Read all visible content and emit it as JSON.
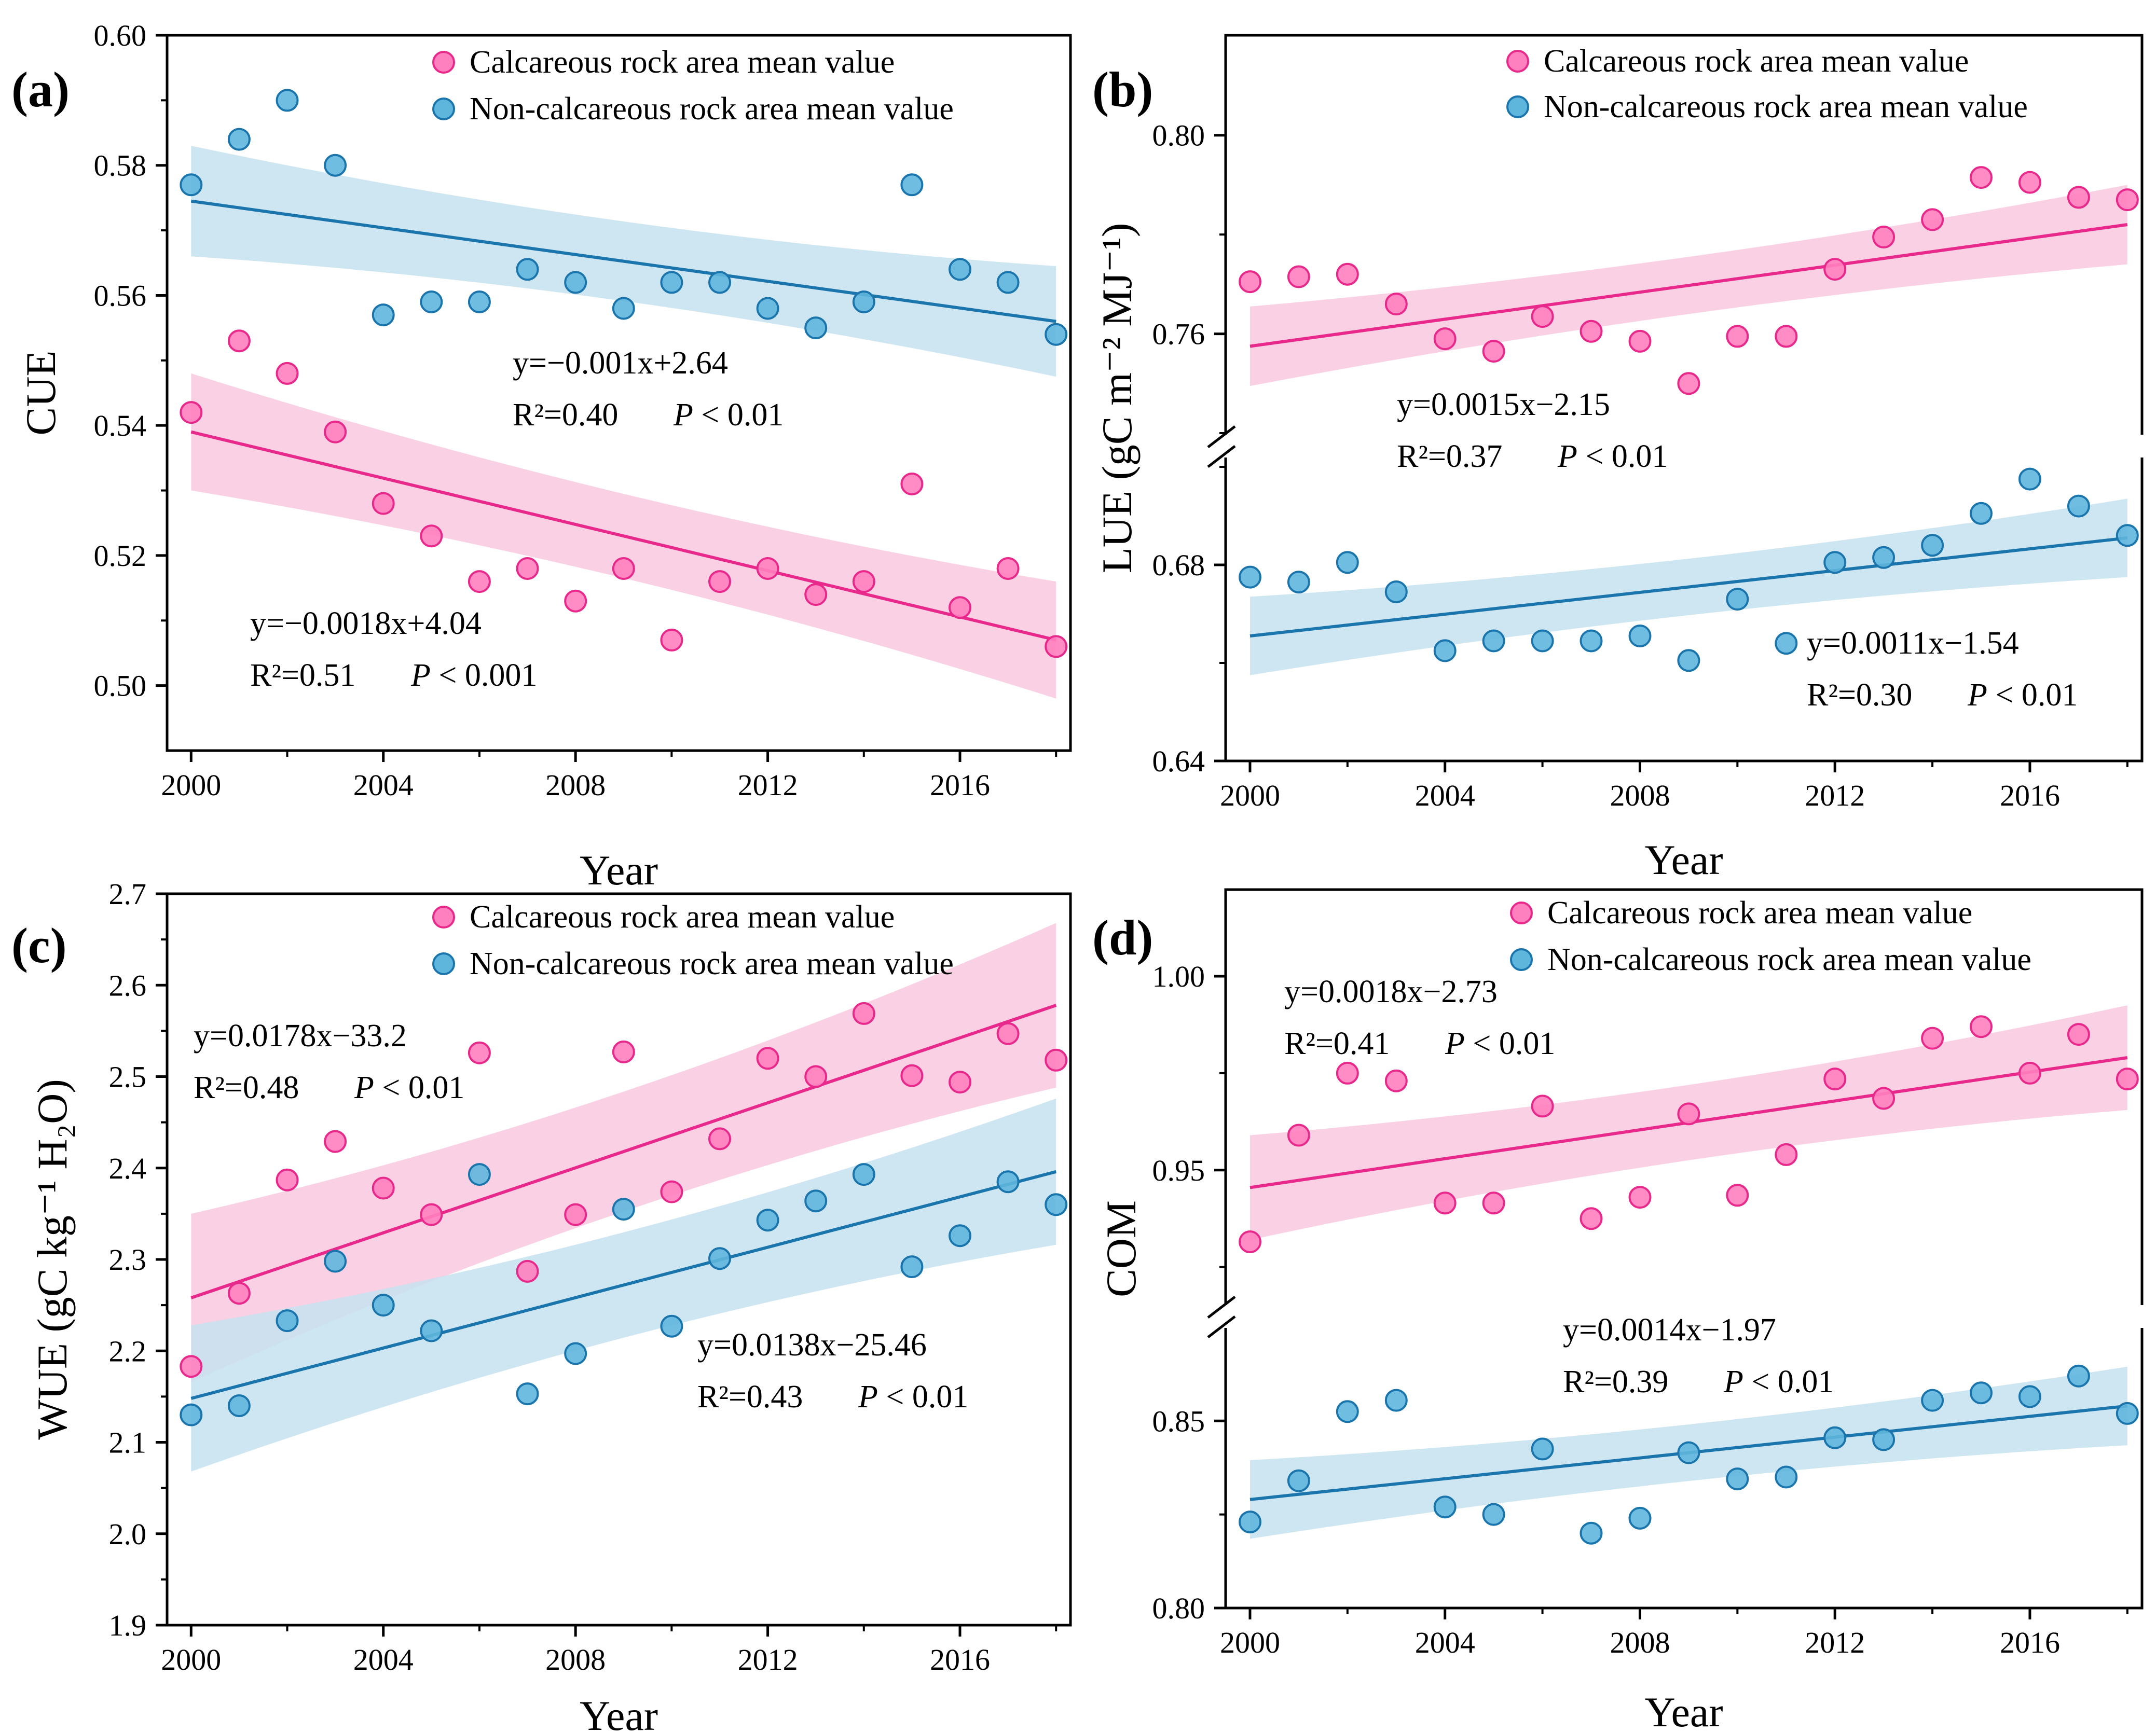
{
  "colors": {
    "calc_line": "#e8288a",
    "calc_point": "#ff80bf",
    "calc_band": "#f9c9df",
    "noncalc_line": "#1b75ad",
    "noncalc_point": "#5fb6dd",
    "noncalc_band": "#c5e2ef"
  },
  "chart_data": [
    {
      "id": "a",
      "panel_label": "(a)",
      "type": "scatter",
      "xlabel": "Year",
      "ylabel": "CUE",
      "xlim": [
        1999.5,
        2018.3
      ],
      "xticks": [
        2000,
        2004,
        2008,
        2012,
        2016
      ],
      "ylim": [
        0.49,
        0.6
      ],
      "yticks": [
        0.5,
        0.52,
        0.54,
        0.56,
        0.58,
        0.6
      ],
      "ytick_labels": [
        "0.50",
        "0.52",
        "0.54",
        "0.56",
        "0.58",
        "0.60"
      ],
      "legend": [
        "Calcareous rock area  mean value",
        "Non-calcareous rock area mean value"
      ],
      "series": [
        {
          "name": "Calcareous rock area  mean value",
          "x": [
            2000,
            2001,
            2002,
            2003,
            2004,
            2005,
            2006,
            2007,
            2008,
            2009,
            2010,
            2011,
            2012,
            2013,
            2014,
            2015,
            2016,
            2017,
            2018
          ],
          "y": [
            0.542,
            0.553,
            0.548,
            0.539,
            0.528,
            0.523,
            0.516,
            0.518,
            0.513,
            0.518,
            0.507,
            0.516,
            0.518,
            0.514,
            0.516,
            0.531,
            0.512,
            0.518,
            0.506
          ],
          "fit": {
            "x0": 2000,
            "y0": 0.539,
            "x1": 2018,
            "y1": 0.507,
            "band0": 0.009,
            "band1": 0.009
          },
          "equation": "y=−0.0018x+4.04",
          "r2": "R²=0.51",
          "p": "P < 0.001"
        },
        {
          "name": "Non-calcareous rock area mean value",
          "x": [
            2000,
            2001,
            2002,
            2003,
            2004,
            2005,
            2006,
            2007,
            2008,
            2009,
            2010,
            2011,
            2012,
            2013,
            2014,
            2015,
            2016,
            2017,
            2018
          ],
          "y": [
            0.577,
            0.584,
            0.59,
            0.58,
            0.557,
            0.559,
            0.559,
            0.564,
            0.562,
            0.558,
            0.562,
            0.562,
            0.558,
            0.555,
            0.559,
            0.577,
            0.564,
            0.562,
            0.554
          ],
          "fit": {
            "x0": 2000,
            "y0": 0.5745,
            "x1": 2018,
            "y1": 0.556,
            "band0": 0.0085,
            "band1": 0.0085
          },
          "equation": "y=−0.001x+2.64",
          "r2": "R²=0.40",
          "p": "P < 0.01"
        }
      ]
    },
    {
      "id": "b",
      "panel_label": "(b)",
      "type": "scatter",
      "xlabel": "Year",
      "ylabel": "LUE (gC m⁻² MJ⁻¹)",
      "xlim": [
        1999.5,
        2018.3
      ],
      "xticks": [
        2000,
        2004,
        2008,
        2012,
        2016
      ],
      "broken_axis": true,
      "ytick_labels": [
        "0.64",
        "0.68",
        "0.76",
        "0.80"
      ],
      "legend": [
        "Calcareous rock area  mean value",
        "Non-calcareous rock area mean value"
      ],
      "series": [
        {
          "name": "Calcareous rock area  mean value",
          "x": [
            2000,
            2001,
            2002,
            2003,
            2004,
            2005,
            2006,
            2007,
            2008,
            2009,
            2010,
            2011,
            2012,
            2013,
            2014,
            2015,
            2016,
            2017,
            2018
          ],
          "y": [
            0.7705,
            0.7715,
            0.772,
            0.766,
            0.759,
            0.7565,
            0.7635,
            0.7605,
            0.7585,
            0.75,
            0.7595,
            0.7595,
            0.773,
            0.7795,
            0.783,
            0.7915,
            0.7905,
            0.7875,
            0.787
          ],
          "fit": {
            "x0": 2000,
            "y0": 0.7575,
            "x1": 2018,
            "y1": 0.782,
            "band0": 0.008,
            "band1": 0.008
          },
          "equation": "y=0.0015x−2.15",
          "r2": "R²=0.37",
          "p": "P < 0.01"
        },
        {
          "name": "Non-calcareous rock area mean value",
          "x": [
            2000,
            2001,
            2002,
            2003,
            2004,
            2005,
            2006,
            2007,
            2008,
            2009,
            2010,
            2011,
            2012,
            2013,
            2014,
            2015,
            2016,
            2017,
            2018
          ],
          "y": [
            0.6775,
            0.6765,
            0.6805,
            0.6745,
            0.6625,
            0.6645,
            0.6645,
            0.6645,
            0.6655,
            0.6605,
            0.673,
            0.664,
            0.6805,
            0.6815,
            0.684,
            0.6905,
            0.6975,
            0.692,
            0.686
          ],
          "fit": {
            "x0": 2000,
            "y0": 0.6655,
            "x1": 2018,
            "y1": 0.6855,
            "band0": 0.008,
            "band1": 0.008
          },
          "equation": "y=0.0011x−1.54",
          "r2": "R²=0.30",
          "p": "P < 0.01"
        }
      ]
    },
    {
      "id": "c",
      "panel_label": "(c)",
      "type": "scatter",
      "xlabel": "Year",
      "ylabel": "WUE (gC kg⁻¹ H₂O)",
      "xlim": [
        1999.5,
        2018.3
      ],
      "xticks": [
        2000,
        2004,
        2008,
        2012,
        2016
      ],
      "ylim": [
        1.9,
        2.7
      ],
      "yticks": [
        1.9,
        2.0,
        2.1,
        2.2,
        2.3,
        2.4,
        2.5,
        2.6,
        2.7
      ],
      "ytick_labels": [
        "1.9",
        "2.0",
        "2.1",
        "2.2",
        "2.3",
        "2.4",
        "2.5",
        "2.6",
        "2.7"
      ],
      "legend": [
        "Calcareous rock area  mean value",
        "Non-calcareous rock area mean value"
      ],
      "series": [
        {
          "name": "Calcareous rock area  mean value",
          "x": [
            2000,
            2001,
            2002,
            2003,
            2004,
            2005,
            2006,
            2007,
            2008,
            2009,
            2010,
            2011,
            2012,
            2013,
            2014,
            2015,
            2016,
            2017,
            2018
          ],
          "y": [
            2.183,
            2.263,
            2.387,
            2.429,
            2.378,
            2.349,
            2.526,
            2.287,
            2.349,
            2.527,
            2.374,
            2.432,
            2.52,
            2.5,
            2.569,
            2.501,
            2.494,
            2.547,
            2.518
          ],
          "fit": {
            "x0": 2000,
            "y0": 2.258,
            "x1": 2018,
            "y1": 2.578,
            "band0": 0.092,
            "band1": 0.09
          },
          "equation": "y=0.0178x−33.2",
          "r2": "R²=0.48",
          "p": "P < 0.01"
        },
        {
          "name": "Non-calcareous rock area mean value",
          "x": [
            2000,
            2001,
            2002,
            2003,
            2004,
            2005,
            2006,
            2007,
            2008,
            2009,
            2010,
            2011,
            2012,
            2013,
            2014,
            2015,
            2016,
            2017,
            2018
          ],
          "y": [
            2.13,
            2.14,
            2.233,
            2.298,
            2.25,
            2.222,
            2.393,
            2.153,
            2.197,
            2.355,
            2.227,
            2.301,
            2.343,
            2.364,
            2.393,
            2.292,
            2.326,
            2.385,
            2.36
          ],
          "fit": {
            "x0": 2000,
            "y0": 2.148,
            "x1": 2018,
            "y1": 2.396,
            "band0": 0.08,
            "band1": 0.08
          },
          "equation": "y=0.0138x−25.46",
          "r2": "R²=0.43",
          "p": "P < 0.01"
        }
      ]
    },
    {
      "id": "d",
      "panel_label": "(d)",
      "type": "scatter",
      "xlabel": "Year",
      "ylabel": "COM",
      "xlim": [
        1999.5,
        2018.3
      ],
      "xticks": [
        2000,
        2004,
        2008,
        2012,
        2016
      ],
      "broken_axis": true,
      "ytick_labels": [
        "0.80",
        "0.85",
        "0.95",
        "1.00"
      ],
      "legend": [
        "Calcareous rock area  mean value",
        "Non-calcareous rock area mean value"
      ],
      "series": [
        {
          "name": "Calcareous rock area  mean value",
          "x": [
            2000,
            2001,
            2002,
            2003,
            2004,
            2005,
            2006,
            2007,
            2008,
            2009,
            2010,
            2011,
            2012,
            2013,
            2014,
            2015,
            2016,
            2017,
            2018
          ],
          "y": [
            0.9315,
            0.959,
            0.975,
            0.973,
            0.9415,
            0.9415,
            0.9665,
            0.9375,
            0.943,
            0.9645,
            0.9435,
            0.954,
            0.9735,
            0.9685,
            0.984,
            0.987,
            0.975,
            0.985,
            0.9735
          ],
          "fit": {
            "x0": 2000,
            "y0": 0.9455,
            "x1": 2018,
            "y1": 0.979,
            "band0": 0.0135,
            "band1": 0.0135
          },
          "equation": "y=0.0018x−2.73",
          "r2": "R²=0.41",
          "p": "P < 0.01"
        },
        {
          "name": "Non-calcareous rock area mean value",
          "x": [
            2000,
            2001,
            2002,
            2003,
            2004,
            2005,
            2006,
            2007,
            2008,
            2009,
            2010,
            2011,
            2012,
            2013,
            2014,
            2015,
            2016,
            2017,
            2018
          ],
          "y": [
            0.823,
            0.834,
            0.8525,
            0.8555,
            0.827,
            0.825,
            0.8425,
            0.82,
            0.824,
            0.8415,
            0.8345,
            0.835,
            0.8455,
            0.845,
            0.8555,
            0.8575,
            0.8565,
            0.862,
            0.852
          ],
          "fit": {
            "x0": 2000,
            "y0": 0.829,
            "x1": 2018,
            "y1": 0.854,
            "band0": 0.0105,
            "band1": 0.0105
          },
          "equation": "y=0.0014x−1.97",
          "r2": "R²=0.39",
          "p": "P < 0.01"
        }
      ]
    }
  ]
}
